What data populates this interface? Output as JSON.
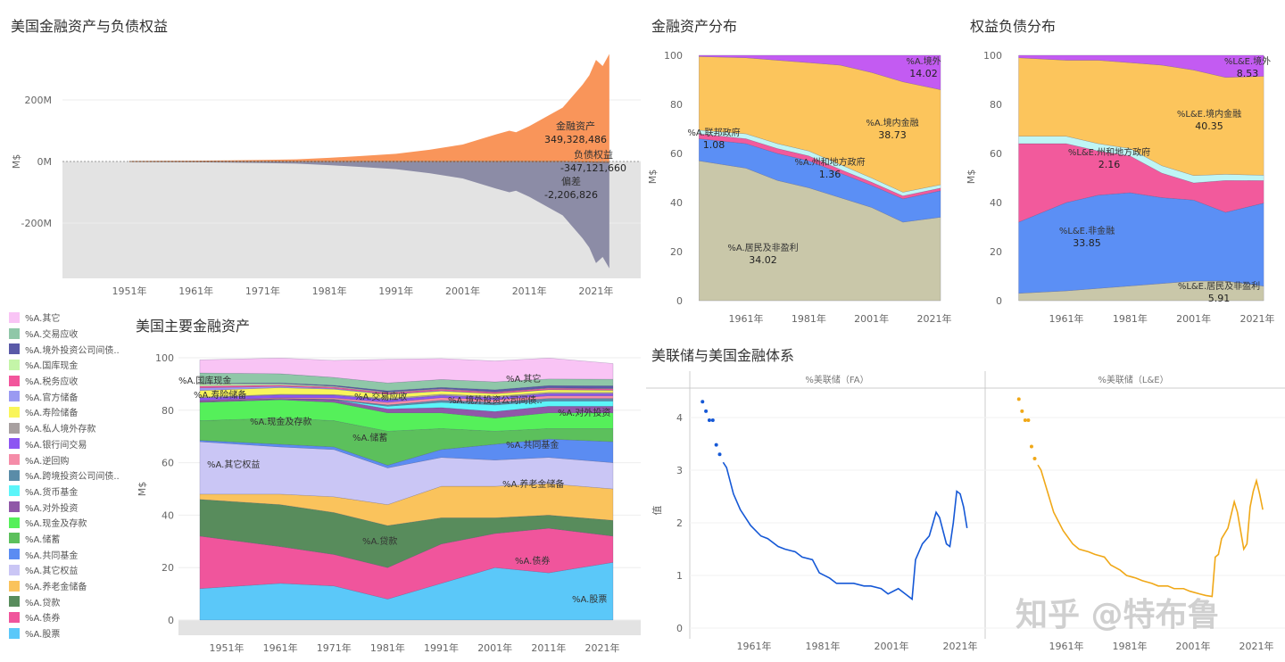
{
  "chart_data": [
    {
      "type": "area",
      "title": "美国金融资产与负债权益",
      "ylabel": "M$",
      "yticks": [
        "200M",
        "0M",
        "-200M"
      ],
      "ytick_values": [
        200,
        0,
        -200
      ],
      "xticks": [
        "1951年",
        "1961年",
        "1971年",
        "1981年",
        "1991年",
        "2001年",
        "2011年",
        "2021年"
      ],
      "xtick_values": [
        1951,
        1961,
        1971,
        1981,
        1991,
        2001,
        2011,
        2021
      ],
      "x": [
        1951,
        1956,
        1961,
        1966,
        1971,
        1976,
        1981,
        1986,
        1991,
        1996,
        2001,
        2006,
        2008,
        2009,
        2011,
        2016,
        2019,
        2020,
        2021,
        2022,
        2023
      ],
      "series": [
        {
          "name": "金融资产",
          "color": "#f9955a",
          "values": [
            1.5,
            2,
            2.5,
            3.5,
            5,
            7,
            12,
            18,
            25,
            38,
            55,
            88,
            100,
            95,
            115,
            175,
            250,
            280,
            330,
            310,
            349.3
          ],
          "label_value": "349,328,486"
        },
        {
          "name": "负债权益",
          "color": "#8c8ca6",
          "values": [
            -1.5,
            -2,
            -2.5,
            -3.5,
            -5,
            -7,
            -12,
            -18,
            -25,
            -38,
            -55,
            -88,
            -100,
            -95,
            -115,
            -175,
            -250,
            -280,
            -330,
            -310,
            -347.1
          ],
          "label_value": "-347,121,660"
        },
        {
          "name": "偏差",
          "color": "#8b5a3a",
          "values": [
            0,
            0,
            0,
            0,
            0,
            0,
            0,
            0,
            0,
            0,
            0,
            0,
            0,
            0,
            0,
            0,
            -1,
            -1,
            -2,
            -2,
            -2.2
          ],
          "label_value": "-2,206,826"
        }
      ],
      "negative_band_color": "#e3e3e3",
      "grid": true
    },
    {
      "type": "area",
      "title": "金融资产分布",
      "ylabel": "M$",
      "ylim": [
        0,
        100
      ],
      "yticks": [
        "0",
        "20",
        "40",
        "60",
        "80",
        "100"
      ],
      "ytick_values": [
        0,
        20,
        40,
        60,
        80,
        100
      ],
      "xticks": [
        "1961年",
        "1981年",
        "2001年",
        "2021年"
      ],
      "xtick_values": [
        1961,
        1981,
        2001,
        2021
      ],
      "x": [
        1946,
        1961,
        1971,
        1981,
        1991,
        2001,
        2011,
        2023
      ],
      "series": [
        {
          "name": "%A.居民及非盈利",
          "color": "#c9c7a9",
          "values": [
            57,
            54,
            49,
            46,
            42,
            38,
            32,
            34.02
          ],
          "label_value": "34.02"
        },
        {
          "color": "#5b8ff5",
          "values": [
            9,
            10,
            11,
            11,
            10,
            9,
            9.5,
            10.79
          ]
        },
        {
          "name": "%A.联邦政府",
          "color": "#f25a9c",
          "values": [
            2,
            2,
            2,
            2,
            1.5,
            1.3,
            1.2,
            1.08
          ],
          "label_value": "1.08"
        },
        {
          "name": "%A.州和地方政府",
          "color": "#bff5f5",
          "values": [
            1.5,
            2,
            2,
            2,
            2,
            1.7,
            1.5,
            1.36
          ],
          "label_value": "1.36"
        },
        {
          "name": "%A.境内金融",
          "color": "#fcc55c",
          "values": [
            30,
            31,
            34,
            36,
            40.5,
            43,
            45,
            38.73
          ],
          "label_value": "38.73"
        },
        {
          "name": "%A.境外",
          "color": "#c35bf2",
          "values": [
            0.5,
            1,
            2,
            3,
            4,
            7,
            10.8,
            14.02
          ],
          "label_value": "14.02"
        }
      ]
    },
    {
      "type": "area",
      "title": "权益负债分布",
      "ylabel": "M$",
      "ylim": [
        0,
        100
      ],
      "yticks": [
        "0",
        "20",
        "40",
        "60",
        "80",
        "100"
      ],
      "ytick_values": [
        0,
        20,
        40,
        60,
        80,
        100
      ],
      "xticks": [
        "1961年",
        "1981年",
        "2001年",
        "2021年"
      ],
      "xtick_values": [
        1961,
        1981,
        2001,
        2021
      ],
      "x": [
        1946,
        1961,
        1971,
        1981,
        1991,
        2001,
        2011,
        2023
      ],
      "series": [
        {
          "name": "%L&E.居民及非盈利",
          "color": "#c9c7a9",
          "values": [
            3,
            4,
            5,
            6,
            7,
            8,
            8,
            5.91
          ],
          "label_value": "5.91"
        },
        {
          "name": "%L&E.非金融",
          "color": "#5b8ff5",
          "values": [
            29,
            36,
            38,
            38,
            35,
            33,
            28,
            33.85
          ],
          "label_value": "33.85"
        },
        {
          "color": "#f25a9c",
          "values": [
            32,
            24,
            18,
            15,
            10,
            7,
            13,
            9.2
          ]
        },
        {
          "name": "%L&E.州和地方政府",
          "color": "#bff5f5",
          "values": [
            3,
            3,
            3,
            3,
            3,
            3,
            2.5,
            2.16
          ],
          "label_value": "2.16"
        },
        {
          "name": "%L&E.境内金融",
          "color": "#fcc55c",
          "values": [
            32,
            31,
            34,
            35,
            41,
            43,
            39.5,
            40.35
          ],
          "label_value": "40.35"
        },
        {
          "name": "%L&E.境外",
          "color": "#c35bf2",
          "values": [
            1,
            2,
            2,
            3,
            4,
            6,
            9,
            8.53
          ],
          "label_value": "8.53"
        }
      ]
    },
    {
      "type": "area",
      "title": "美国主要金融资产",
      "ylabel": "M$",
      "ylim": [
        0,
        100
      ],
      "yticks": [
        "0",
        "20",
        "40",
        "60",
        "80",
        "100"
      ],
      "ytick_values": [
        0,
        20,
        40,
        60,
        80,
        100
      ],
      "xticks": [
        "1951年",
        "1961年",
        "1971年",
        "1981年",
        "1991年",
        "2001年",
        "2011年",
        "2021年"
      ],
      "xtick_values": [
        1951,
        1961,
        1971,
        1981,
        1991,
        2001,
        2011,
        2021
      ],
      "x": [
        1946,
        1961,
        1971,
        1981,
        1991,
        2001,
        2011,
        2023
      ],
      "legend": "left",
      "series": [
        {
          "name": "%A.股票",
          "color": "#5bc8f9",
          "values": [
            12,
            14,
            13,
            8,
            14,
            20,
            18,
            22
          ]
        },
        {
          "name": "%A.债券",
          "color": "#f0559c",
          "values": [
            20,
            14,
            12,
            12,
            15,
            13,
            17,
            10
          ]
        },
        {
          "name": "%A.贷款",
          "color": "#588c5c",
          "values": [
            14,
            16,
            16,
            16,
            10,
            6,
            5,
            6
          ]
        },
        {
          "name": "%A.养老金储备",
          "color": "#fac35c",
          "values": [
            2,
            4,
            6,
            8,
            12,
            12,
            12,
            12
          ]
        },
        {
          "name": "%A.其它权益",
          "color": "#cac6f5",
          "values": [
            20,
            18,
            18,
            14,
            11,
            10,
            10,
            10
          ]
        },
        {
          "name": "%A.共同基金",
          "color": "#5b8cf2",
          "values": [
            0.5,
            1,
            1,
            1,
            3,
            6,
            7,
            8
          ]
        },
        {
          "name": "%A.储蓄",
          "color": "#5cc05c",
          "values": [
            7.5,
            10,
            10,
            13,
            8,
            5,
            4,
            5
          ]
        },
        {
          "name": "%A.现金及存款",
          "color": "#55f05a",
          "values": [
            7,
            7,
            7,
            7,
            6,
            5,
            6,
            6
          ]
        },
        {
          "name": "%A.对外投资",
          "color": "#9058a8",
          "values": [
            0.5,
            0.5,
            1,
            1.5,
            2,
            2.5,
            2.5,
            2.5
          ]
        },
        {
          "name": "%A.货币基金",
          "color": "#5cf5f9",
          "values": [
            0,
            0,
            0,
            1,
            2,
            2.5,
            2,
            2
          ]
        },
        {
          "name": "%A.跨境投资公司间债..",
          "color": "#5a8ca8",
          "values": [
            0,
            0,
            0.2,
            0.5,
            0.8,
            1,
            1,
            1
          ]
        },
        {
          "name": "%A.逆回购",
          "color": "#f58ca8",
          "values": [
            0.2,
            0.3,
            0.5,
            1,
            1,
            1,
            1,
            1
          ]
        },
        {
          "name": "%A.银行间交易",
          "color": "#8c55f2",
          "values": [
            1,
            1,
            1,
            1,
            0.8,
            0.8,
            0.8,
            0.8
          ]
        },
        {
          "name": "%A.私人境外存款",
          "color": "#a8a0a0",
          "values": [
            0.3,
            0.3,
            0.3,
            0.5,
            0.5,
            0.5,
            0.5,
            0.5
          ]
        },
        {
          "name": "%A.寿险储备",
          "color": "#f9f55a",
          "values": [
            2.5,
            2.5,
            2,
            1.5,
            1.2,
            1,
            1,
            0.8
          ]
        },
        {
          "name": "%A.官方储备",
          "color": "#9a9af2",
          "values": [
            1,
            0.5,
            0.3,
            0.2,
            0.2,
            0.1,
            0.1,
            0.1
          ]
        },
        {
          "name": "%A.税务应收",
          "color": "#f2559c",
          "values": [
            0.7,
            0.5,
            0.5,
            0.5,
            0.5,
            0.5,
            0.5,
            0.5
          ]
        },
        {
          "name": "%A.国库现金",
          "color": "#c4f5a8",
          "values": [
            0.8,
            0.5,
            0.3,
            0.2,
            0.2,
            0.1,
            0.1,
            0.1
          ]
        },
        {
          "name": "%A.境外投资公司间债..",
          "color": "#5a5aa8",
          "values": [
            0.2,
            0.3,
            0.4,
            0.5,
            0.5,
            0.8,
            0.9,
            1
          ]
        },
        {
          "name": "%A.交易应收",
          "color": "#8fc7a8",
          "values": [
            4,
            3.5,
            3,
            3,
            3,
            3,
            2.5,
            2.5
          ]
        },
        {
          "name": "%A.其它",
          "color": "#f9c4f5",
          "values": [
            5,
            6,
            6.5,
            9,
            8,
            8,
            8,
            6
          ]
        }
      ],
      "in_chart_labels": [
        "%A.国库现金",
        "%A.寿险储备",
        "%A.交易应收",
        "%A.境外投资公司间债..",
        "%A.其它",
        "%A.对外投资",
        "%A.现金及存款",
        "%A.储蓄",
        "%A.共同基金",
        "%A.其它权益",
        "%A.养老金储备",
        "%A.贷款",
        "%A.债券",
        "%A.股票"
      ]
    },
    {
      "type": "line",
      "title": "美联储与美国金融体系",
      "ylabel": "值",
      "ylim": [
        0,
        4.5
      ],
      "yticks": [
        "0",
        "1",
        "2",
        "3",
        "4"
      ],
      "ytick_values": [
        0,
        1,
        2,
        3,
        4
      ],
      "panels": [
        {
          "header": "%美联储（FA）",
          "color": "#1558d6",
          "xticks": [
            "1961年",
            "1981年",
            "2001年",
            "2021年"
          ],
          "xtick_values": [
            1961,
            1981,
            2001,
            2021
          ],
          "points": [
            [
              1946,
              4.3
            ],
            [
              1947,
              4.12
            ],
            [
              1948,
              3.95
            ],
            [
              1949,
              3.95
            ],
            [
              1950,
              3.48
            ],
            [
              1951,
              3.3
            ]
          ],
          "x": [
            1952,
            1953,
            1955,
            1957,
            1960,
            1963,
            1965,
            1968,
            1970,
            1973,
            1975,
            1978,
            1980,
            1983,
            1985,
            1988,
            1990,
            1993,
            1995,
            1998,
            2000,
            2003,
            2005,
            2007,
            2008,
            2009,
            2010,
            2012,
            2014,
            2015,
            2017,
            2018,
            2019,
            2020,
            2021,
            2022,
            2023
          ],
          "values": [
            3.15,
            3.05,
            2.55,
            2.25,
            1.95,
            1.75,
            1.7,
            1.55,
            1.5,
            1.45,
            1.35,
            1.3,
            1.05,
            0.95,
            0.85,
            0.85,
            0.85,
            0.8,
            0.8,
            0.75,
            0.65,
            0.75,
            0.65,
            0.55,
            1.3,
            1.45,
            1.6,
            1.75,
            2.2,
            2.1,
            1.6,
            1.55,
            2.0,
            2.6,
            2.55,
            2.3,
            1.9
          ]
        },
        {
          "header": "%美联储（L&E）",
          "color": "#f0a818",
          "xticks": [
            "1961年",
            "1981年",
            "2001年",
            "2021年"
          ],
          "xtick_values": [
            1961,
            1981,
            2001,
            2021
          ],
          "points": [
            [
              1946,
              4.35
            ],
            [
              1947,
              4.12
            ],
            [
              1948,
              3.95
            ],
            [
              1949,
              3.95
            ],
            [
              1950,
              3.45
            ],
            [
              1951,
              3.22
            ]
          ],
          "x": [
            1952,
            1953,
            1955,
            1957,
            1960,
            1963,
            1965,
            1968,
            1970,
            1973,
            1975,
            1978,
            1980,
            1983,
            1985,
            1988,
            1990,
            1993,
            1995,
            1998,
            2000,
            2003,
            2005,
            2007,
            2008,
            2009,
            2010,
            2012,
            2014,
            2015,
            2017,
            2018,
            2019,
            2020,
            2021,
            2022,
            2023
          ],
          "values": [
            3.1,
            3.0,
            2.6,
            2.2,
            1.85,
            1.6,
            1.5,
            1.45,
            1.4,
            1.35,
            1.2,
            1.1,
            1.0,
            0.95,
            0.9,
            0.85,
            0.8,
            0.8,
            0.75,
            0.75,
            0.7,
            0.65,
            0.62,
            0.6,
            1.35,
            1.4,
            1.7,
            1.9,
            2.4,
            2.2,
            1.5,
            1.6,
            2.3,
            2.6,
            2.8,
            2.55,
            2.25
          ]
        }
      ]
    }
  ],
  "watermark": "知乎 @特布鲁"
}
